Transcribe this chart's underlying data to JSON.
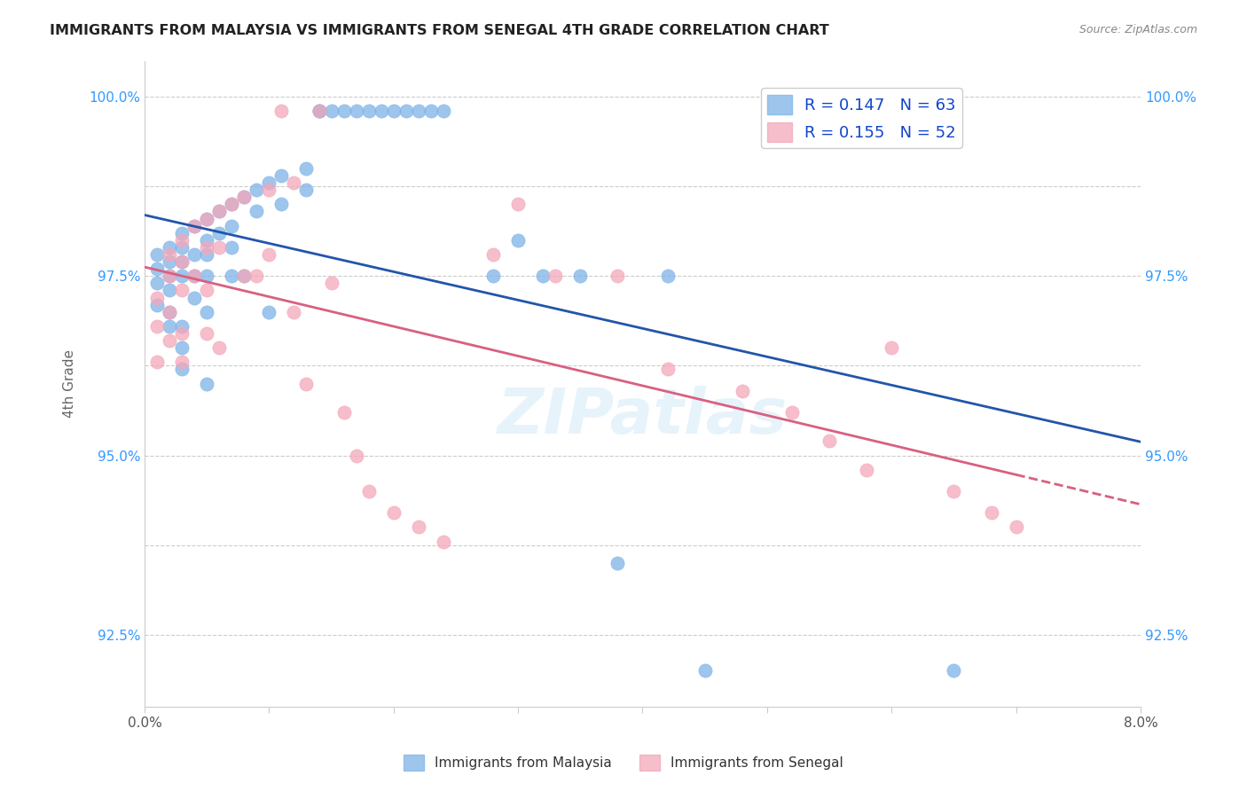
{
  "title": "IMMIGRANTS FROM MALAYSIA VS IMMIGRANTS FROM SENEGAL 4TH GRADE CORRELATION CHART",
  "source": "Source: ZipAtlas.com",
  "xlabel_bottom": "",
  "ylabel": "4th Grade",
  "xlim": [
    0.0,
    0.08
  ],
  "ylim": [
    0.915,
    1.005
  ],
  "xticks": [
    0.0,
    0.01,
    0.02,
    0.03,
    0.04,
    0.05,
    0.06,
    0.07,
    0.08
  ],
  "xticklabels": [
    "0.0%",
    "",
    "",
    "",
    "",
    "",
    "",
    "",
    "8.0%"
  ],
  "yticks": [
    0.925,
    0.9375,
    0.95,
    0.9625,
    0.975,
    0.9875,
    1.0
  ],
  "yticklabels": [
    "92.5%",
    "",
    "95.0%",
    "",
    "97.5%",
    "",
    "100.0%"
  ],
  "malaysia_color": "#7eb3e8",
  "senegal_color": "#f4a7b9",
  "malaysia_line_color": "#2255aa",
  "senegal_line_color": "#d96080",
  "legend_R_malaysia": "R = 0.147",
  "legend_N_malaysia": "N = 63",
  "legend_R_senegal": "R = 0.155",
  "legend_N_senegal": "N = 52",
  "background_color": "#ffffff",
  "grid_color": "#cccccc",
  "watermark": "ZIPatlas",
  "malaysia_x": [
    0.001,
    0.001,
    0.001,
    0.001,
    0.002,
    0.002,
    0.002,
    0.002,
    0.002,
    0.002,
    0.003,
    0.003,
    0.003,
    0.003,
    0.003,
    0.003,
    0.003,
    0.004,
    0.004,
    0.004,
    0.004,
    0.005,
    0.005,
    0.005,
    0.005,
    0.005,
    0.005,
    0.006,
    0.006,
    0.007,
    0.007,
    0.007,
    0.007,
    0.008,
    0.008,
    0.009,
    0.009,
    0.01,
    0.01,
    0.011,
    0.011,
    0.013,
    0.013,
    0.014,
    0.014,
    0.015,
    0.016,
    0.017,
    0.018,
    0.019,
    0.02,
    0.021,
    0.022,
    0.023,
    0.024,
    0.028,
    0.03,
    0.032,
    0.035,
    0.038,
    0.042,
    0.045,
    0.065
  ],
  "malaysia_y": [
    0.978,
    0.976,
    0.974,
    0.971,
    0.979,
    0.977,
    0.975,
    0.973,
    0.97,
    0.968,
    0.981,
    0.979,
    0.977,
    0.975,
    0.968,
    0.965,
    0.962,
    0.982,
    0.978,
    0.975,
    0.972,
    0.983,
    0.98,
    0.978,
    0.975,
    0.97,
    0.96,
    0.984,
    0.981,
    0.985,
    0.982,
    0.979,
    0.975,
    0.986,
    0.975,
    0.987,
    0.984,
    0.988,
    0.97,
    0.989,
    0.985,
    0.99,
    0.987,
    0.998,
    0.998,
    0.998,
    0.998,
    0.998,
    0.998,
    0.998,
    0.998,
    0.998,
    0.998,
    0.998,
    0.998,
    0.975,
    0.98,
    0.975,
    0.975,
    0.935,
    0.975,
    0.92,
    0.92
  ],
  "senegal_x": [
    0.001,
    0.001,
    0.001,
    0.002,
    0.002,
    0.002,
    0.002,
    0.003,
    0.003,
    0.003,
    0.003,
    0.003,
    0.004,
    0.004,
    0.005,
    0.005,
    0.005,
    0.005,
    0.006,
    0.006,
    0.006,
    0.007,
    0.008,
    0.008,
    0.009,
    0.01,
    0.01,
    0.011,
    0.012,
    0.012,
    0.013,
    0.014,
    0.015,
    0.016,
    0.017,
    0.018,
    0.02,
    0.022,
    0.024,
    0.028,
    0.03,
    0.033,
    0.038,
    0.042,
    0.048,
    0.052,
    0.055,
    0.058,
    0.06,
    0.065,
    0.068,
    0.07
  ],
  "senegal_y": [
    0.972,
    0.968,
    0.963,
    0.978,
    0.975,
    0.97,
    0.966,
    0.98,
    0.977,
    0.973,
    0.967,
    0.963,
    0.982,
    0.975,
    0.983,
    0.979,
    0.973,
    0.967,
    0.984,
    0.979,
    0.965,
    0.985,
    0.986,
    0.975,
    0.975,
    0.987,
    0.978,
    0.998,
    0.988,
    0.97,
    0.96,
    0.998,
    0.974,
    0.956,
    0.95,
    0.945,
    0.942,
    0.94,
    0.938,
    0.978,
    0.985,
    0.975,
    0.975,
    0.962,
    0.959,
    0.956,
    0.952,
    0.948,
    0.965,
    0.945,
    0.942,
    0.94
  ]
}
